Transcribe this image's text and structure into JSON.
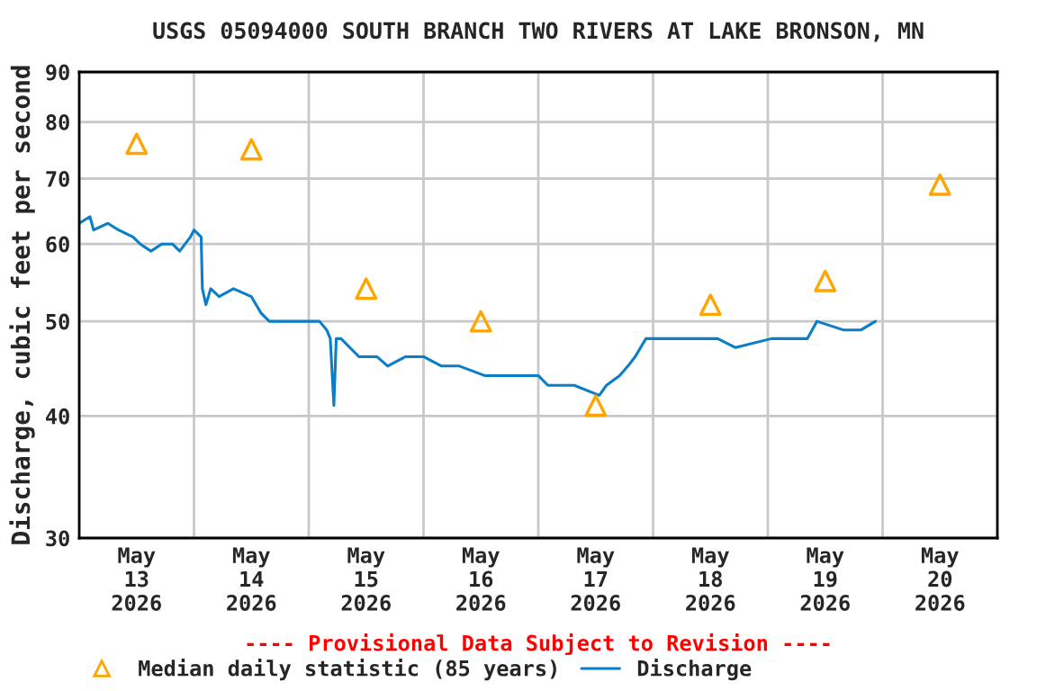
{
  "chart_data": {
    "type": "line",
    "title": "USGS 05094000 SOUTH BRANCH TWO RIVERS AT LAKE BRONSON, MN",
    "ylabel": "Discharge, cubic feet per second",
    "log": "y",
    "ylim": [
      30,
      90
    ],
    "yticks": [
      30,
      40,
      50,
      60,
      70,
      80,
      90
    ],
    "xlim": [
      "2026-05-13T00:00",
      "2026-05-21T00:00"
    ],
    "xticks": [
      {
        "value": "2026-05-13T00:00",
        "label": null
      },
      {
        "value": "2026-05-13T12:00",
        "label": "May\n13\n2026"
      },
      {
        "value": "2026-05-14T00:00",
        "label": null
      },
      {
        "value": "2026-05-14T12:00",
        "label": "May\n14\n2026"
      },
      {
        "value": "2026-05-15T00:00",
        "label": null
      },
      {
        "value": "2026-05-15T12:00",
        "label": "May\n15\n2026"
      },
      {
        "value": "2026-05-16T00:00",
        "label": null
      },
      {
        "value": "2026-05-16T12:00",
        "label": "May\n16\n2026"
      },
      {
        "value": "2026-05-17T00:00",
        "label": null
      },
      {
        "value": "2026-05-17T12:00",
        "label": "May\n17\n2026"
      },
      {
        "value": "2026-05-18T00:00",
        "label": null
      },
      {
        "value": "2026-05-18T12:00",
        "label": "May\n18\n2026"
      },
      {
        "value": "2026-05-19T00:00",
        "label": null
      },
      {
        "value": "2026-05-19T12:00",
        "label": "May\n19\n2026"
      },
      {
        "value": "2026-05-20T00:00",
        "label": null
      },
      {
        "value": "2026-05-20T12:00",
        "label": "May\n20\n2026"
      },
      {
        "value": "2026-05-21T00:00",
        "label": null
      }
    ],
    "grid": true,
    "legend": "bottom",
    "annotations": [
      "---- Provisional Data Subject to Revision ----"
    ],
    "series": [
      {
        "name": "Median daily statistic (85 years)",
        "type": "scatter",
        "marker": "triangle",
        "color": "#ffa500",
        "x": [
          "2026-05-13T12:00",
          "2026-05-14T12:00",
          "2026-05-15T12:00",
          "2026-05-16T12:00",
          "2026-05-17T12:00",
          "2026-05-18T12:00",
          "2026-05-19T12:00",
          "2026-05-20T12:00"
        ],
        "values": [
          76,
          75,
          54,
          50,
          41,
          52,
          55,
          69
        ]
      },
      {
        "name": "Discharge",
        "line_style": "solid",
        "color": "#0a7ec8",
        "x": [
          "2026-05-13T00:00",
          "2026-05-13T02:15",
          "2026-05-13T03:00",
          "2026-05-13T06:00",
          "2026-05-13T08:15",
          "2026-05-13T11:15",
          "2026-05-13T12:45",
          "2026-05-13T15:00",
          "2026-05-13T17:15",
          "2026-05-13T19:30",
          "2026-05-13T21:00",
          "2026-05-13T23:15",
          "2026-05-14T00:00",
          "2026-05-14T01:30",
          "2026-05-14T01:45",
          "2026-05-14T02:30",
          "2026-05-14T03:30",
          "2026-05-14T05:15",
          "2026-05-14T08:15",
          "2026-05-14T12:00",
          "2026-05-14T14:00",
          "2026-05-14T15:45",
          "2026-05-14T19:30",
          "2026-05-14T23:15",
          "2026-05-15T02:15",
          "2026-05-15T03:45",
          "2026-05-15T04:30",
          "2026-05-15T05:15",
          "2026-05-15T05:45",
          "2026-05-15T06:45",
          "2026-05-15T10:30",
          "2026-05-15T14:15",
          "2026-05-15T16:30",
          "2026-05-15T20:15",
          "2026-05-16T00:00",
          "2026-05-16T03:45",
          "2026-05-16T07:30",
          "2026-05-16T12:45",
          "2026-05-16T20:15",
          "2026-05-17T00:00",
          "2026-05-17T02:00",
          "2026-05-17T07:30",
          "2026-05-17T12:45",
          "2026-05-17T14:15",
          "2026-05-17T17:00",
          "2026-05-17T18:45",
          "2026-05-17T20:15",
          "2026-05-17T22:30",
          "2026-05-18T00:00",
          "2026-05-18T06:00",
          "2026-05-18T13:30",
          "2026-05-18T17:15",
          "2026-05-19T00:45",
          "2026-05-19T08:15",
          "2026-05-19T10:15",
          "2026-05-19T15:45",
          "2026-05-19T19:30",
          "2026-05-19T22:30"
        ],
        "values": [
          63,
          64,
          62,
          63,
          62,
          61,
          60,
          59,
          60,
          60,
          59,
          61,
          62,
          61,
          54,
          52,
          54,
          53,
          54,
          53,
          51,
          50,
          50,
          50,
          50,
          49,
          48,
          41,
          48,
          48,
          46,
          46,
          45,
          46,
          46,
          45,
          45,
          44,
          44,
          44,
          43,
          43,
          42,
          43,
          44,
          45,
          46,
          48,
          48,
          48,
          48,
          47,
          48,
          48,
          50,
          49,
          49,
          50
        ]
      }
    ]
  }
}
